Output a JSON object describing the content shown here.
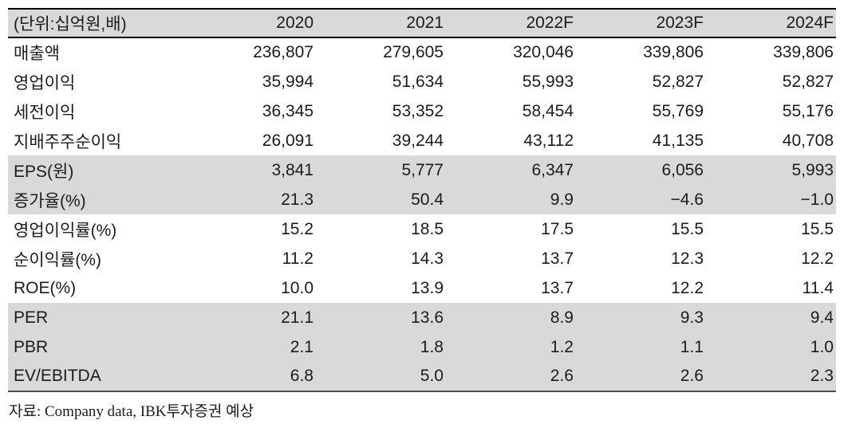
{
  "table": {
    "unit_header": "(단위:십억원,배)",
    "columns": [
      "2020",
      "2021",
      "2022F",
      "2023F",
      "2024F"
    ],
    "rows": [
      {
        "label": "매출액",
        "values": [
          "236,807",
          "279,605",
          "320,046",
          "339,806",
          "339,806"
        ],
        "shaded": false
      },
      {
        "label": "영업이익",
        "values": [
          "35,994",
          "51,634",
          "55,993",
          "52,827",
          "52,827"
        ],
        "shaded": false
      },
      {
        "label": "세전이익",
        "values": [
          "36,345",
          "53,352",
          "58,454",
          "55,769",
          "55,176"
        ],
        "shaded": false
      },
      {
        "label": "지배주주순이익",
        "values": [
          "26,091",
          "39,244",
          "43,112",
          "41,135",
          "40,708"
        ],
        "shaded": false
      },
      {
        "label": "EPS(원)",
        "values": [
          "3,841",
          "5,777",
          "6,347",
          "6,056",
          "5,993"
        ],
        "shaded": true
      },
      {
        "label": "증가율(%)",
        "values": [
          "21.3",
          "50.4",
          "9.9",
          "−4.6",
          "−1.0"
        ],
        "shaded": true
      },
      {
        "label": "영업이익률(%)",
        "values": [
          "15.2",
          "18.5",
          "17.5",
          "15.5",
          "15.5"
        ],
        "shaded": false
      },
      {
        "label": "순이익률(%)",
        "values": [
          "11.2",
          "14.3",
          "13.7",
          "12.3",
          "12.2"
        ],
        "shaded": false
      },
      {
        "label": "ROE(%)",
        "values": [
          "10.0",
          "13.9",
          "13.7",
          "12.2",
          "11.4"
        ],
        "shaded": false
      },
      {
        "label": "PER",
        "values": [
          "21.1",
          "13.6",
          "8.9",
          "9.3",
          "9.4"
        ],
        "shaded": true
      },
      {
        "label": "PBR",
        "values": [
          "2.1",
          "1.8",
          "1.2",
          "1.1",
          "1.0"
        ],
        "shaded": true
      },
      {
        "label": "EV/EBITDA",
        "values": [
          "6.8",
          "5.0",
          "2.6",
          "2.6",
          "2.3"
        ],
        "shaded": true
      }
    ],
    "source": "자료: Company data, IBK투자증권 예상"
  },
  "colors": {
    "row_shade": "#d9d9d9",
    "border_top": "#000000",
    "border_bottom": "#4d4d4d",
    "text": "#1c1c1c"
  }
}
